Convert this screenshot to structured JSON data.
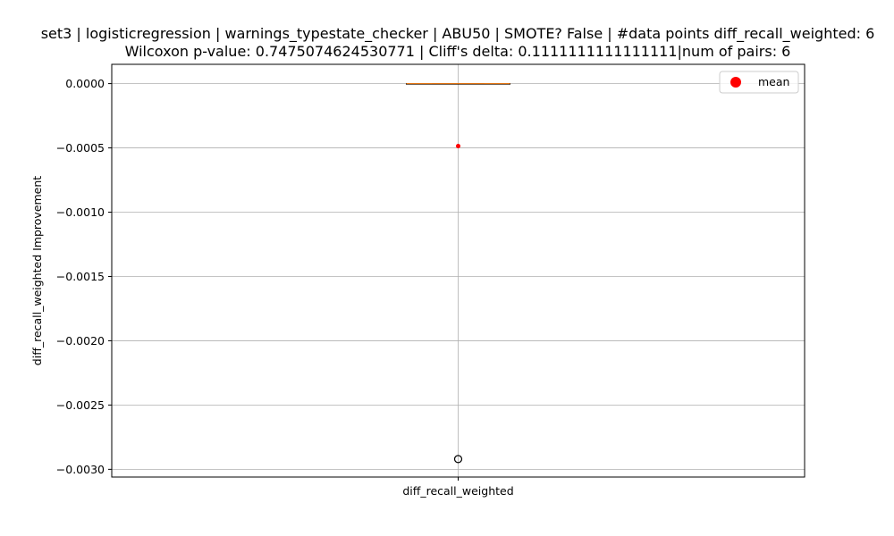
{
  "chart_data": {
    "type": "box",
    "title_line1": "set3 | logisticregression | warnings_typestate_checker | ABU50 | SMOTE? False | #data points diff_recall_weighted: 6",
    "title_line2": "Wilcoxon p-value: 0.7475074624530771 | Cliff's delta: 0.1111111111111111|num of pairs: 6",
    "xlabel": "",
    "ylabel": "diff_recall_weighted Improvement",
    "categories": [
      "diff_recall_weighted"
    ],
    "ylim": [
      -0.00306,
      0.00015
    ],
    "yticks": [
      0.0,
      -0.0005,
      -0.001,
      -0.0015,
      -0.002,
      -0.0025,
      -0.003
    ],
    "ytick_labels": [
      "0.0000",
      "−0.0005",
      "−0.0010",
      "−0.0015",
      "−0.0020",
      "−0.0025",
      "−0.0030"
    ],
    "grid": true,
    "legend_position": "top-right",
    "legend": [
      {
        "label": "mean",
        "color": "#ff0000",
        "marker": "circle"
      }
    ],
    "box": {
      "q1": 0.0,
      "median": 0.0,
      "q3": 0.0,
      "whisker_low": 0.0,
      "whisker_high": 0.0,
      "mean": -0.000486,
      "outliers": [
        -0.00292
      ]
    },
    "colors": {
      "box": "#000000",
      "median": "#ff7f0e",
      "mean": "#ff0000",
      "grid": "#b0b0b0",
      "outlier_edge": "#000000"
    }
  }
}
